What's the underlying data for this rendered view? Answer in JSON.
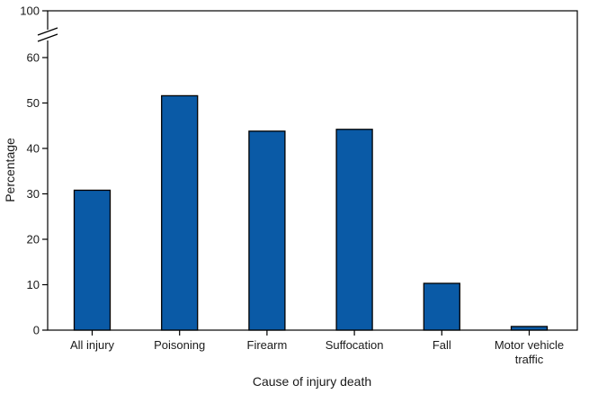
{
  "chart_data": {
    "type": "bar",
    "xlabel": "Cause of injury death",
    "ylabel": "Percentage",
    "categories": [
      [
        "All injury"
      ],
      [
        "Poisoning"
      ],
      [
        "Firearm"
      ],
      [
        "Suffocation"
      ],
      [
        "Fall"
      ],
      [
        "Motor vehicle",
        "traffic"
      ]
    ],
    "values": [
      30.8,
      51.6,
      43.8,
      44.2,
      10.3,
      0.8
    ],
    "y_ticks": [
      "0",
      "10",
      "20",
      "30",
      "40",
      "50",
      "60",
      "100"
    ],
    "ylim": [
      0,
      100
    ],
    "axis_break": "between 60 and 100",
    "grid": false,
    "colors": {
      "bar_fill": "#0a5aa6",
      "bar_stroke": "#000000",
      "axis": "#000000"
    }
  }
}
